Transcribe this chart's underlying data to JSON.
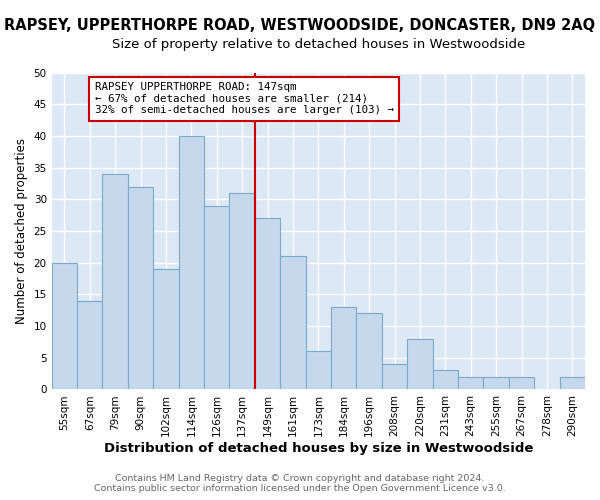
{
  "title": "RAPSEY, UPPERTHORPE ROAD, WESTWOODSIDE, DONCASTER, DN9 2AQ",
  "subtitle": "Size of property relative to detached houses in Westwoodside",
  "xlabel": "Distribution of detached houses by size in Westwoodside",
  "ylabel": "Number of detached properties",
  "bar_labels": [
    "55sqm",
    "67sqm",
    "79sqm",
    "90sqm",
    "102sqm",
    "114sqm",
    "126sqm",
    "137sqm",
    "149sqm",
    "161sqm",
    "173sqm",
    "184sqm",
    "196sqm",
    "208sqm",
    "220sqm",
    "231sqm",
    "243sqm",
    "255sqm",
    "267sqm",
    "278sqm",
    "290sqm"
  ],
  "bar_heights": [
    20,
    14,
    34,
    32,
    19,
    40,
    29,
    31,
    27,
    21,
    6,
    13,
    12,
    4,
    8,
    3,
    2,
    2,
    2,
    0,
    2
  ],
  "bar_color": "#c5d8ec",
  "bar_edge_color": "#7aaac8",
  "ylim": [
    0,
    50
  ],
  "yticks": [
    0,
    5,
    10,
    15,
    20,
    25,
    30,
    35,
    40,
    45,
    50
  ],
  "vline_color": "#cc0000",
  "annotation_title": "RAPSEY UPPERTHORPE ROAD: 147sqm",
  "annotation_line1": "← 67% of detached houses are smaller (214)",
  "annotation_line2": "32% of semi-detached houses are larger (103) →",
  "annotation_box_color": "#ffffff",
  "annotation_box_edge": "#cc0000",
  "footer1": "Contains HM Land Registry data © Crown copyright and database right 2024.",
  "footer2": "Contains public sector information licensed under the Open Government Licence v3.0.",
  "plot_bg_color": "#dce8f5",
  "fig_bg_color": "#ffffff",
  "title_fontsize": 10.5,
  "subtitle_fontsize": 9.5,
  "xlabel_fontsize": 9.5,
  "ylabel_fontsize": 8.5,
  "tick_fontsize": 7.5,
  "footer_fontsize": 6.8,
  "grid_color": "#ffffff"
}
